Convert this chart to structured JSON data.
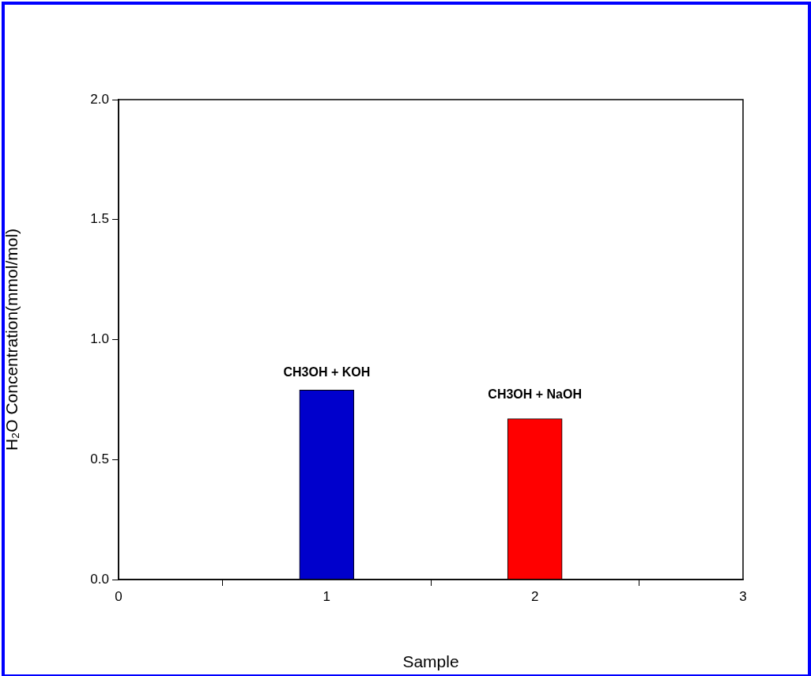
{
  "chart_data": {
    "type": "bar",
    "xlabel": "Sample",
    "ylabel": "H₂O Concentration(mmol/mol)",
    "x": [
      1,
      2
    ],
    "values": [
      0.79,
      0.67
    ],
    "colors": [
      "#0000cc",
      "#ff0000"
    ],
    "xlim": [
      0,
      3
    ],
    "xticks": [
      0,
      1,
      2,
      3
    ],
    "ylim": [
      0,
      2
    ],
    "yticks": [
      {
        "value": 0,
        "label": "0.0"
      },
      {
        "value": 0.5,
        "label": "0.5"
      },
      {
        "value": 1,
        "label": "1.0"
      },
      {
        "value": 1.5,
        "label": "1.5"
      },
      {
        "value": 2,
        "label": "2.0"
      }
    ],
    "grid": false,
    "legend": false,
    "annotations": [
      "CH3OH + KOH",
      "CH3OH + NaOH"
    ]
  }
}
